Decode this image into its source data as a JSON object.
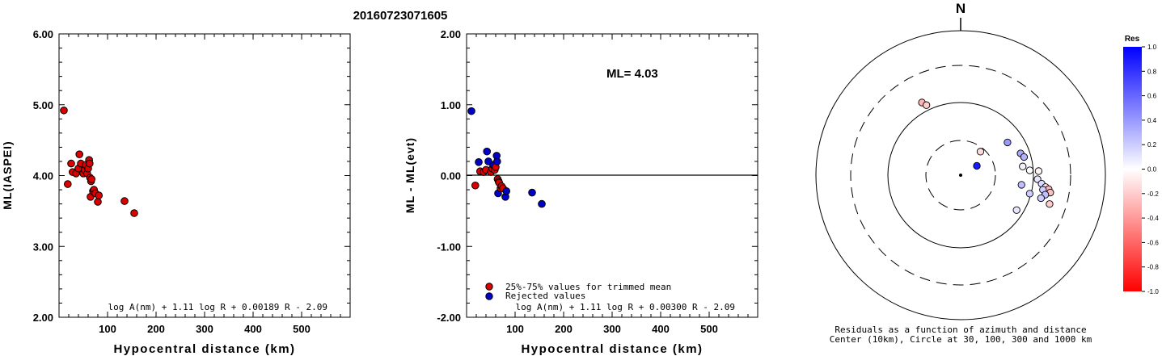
{
  "title": "20160723071605",
  "chart_data": [
    {
      "type": "scatter",
      "ylabel": "ML(IASPEI)",
      "xlabel": "Hypocentral distance (km)",
      "xlim": [
        0,
        600
      ],
      "ylim": [
        2.0,
        6.0
      ],
      "xticks": [
        "100",
        "200",
        "300",
        "400",
        "500"
      ],
      "yticks": [
        "2.00",
        "3.00",
        "4.00",
        "5.00",
        "6.00"
      ],
      "formula": "log A(nm) + 1.11 log R + 0.00189 R - 2.09",
      "color": "#dd0000",
      "points": [
        [
          10,
          4.92
        ],
        [
          18,
          3.88
        ],
        [
          25,
          4.17
        ],
        [
          28,
          4.05
        ],
        [
          35,
          4.03
        ],
        [
          40,
          4.1
        ],
        [
          42,
          4.3
        ],
        [
          45,
          4.17
        ],
        [
          50,
          4.03
        ],
        [
          53,
          4.08
        ],
        [
          55,
          4.15
        ],
        [
          58,
          4.03
        ],
        [
          60,
          4.1
        ],
        [
          62,
          4.22
        ],
        [
          63,
          4.17
        ],
        [
          64,
          3.97
        ],
        [
          65,
          3.7
        ],
        [
          66,
          3.92
        ],
        [
          67,
          3.95
        ],
        [
          70,
          3.78
        ],
        [
          72,
          3.8
        ],
        [
          75,
          3.75
        ],
        [
          80,
          3.63
        ],
        [
          82,
          3.72
        ],
        [
          135,
          3.64
        ],
        [
          155,
          3.47
        ]
      ]
    },
    {
      "type": "scatter",
      "ylabel": "ML - ML(evt)",
      "xlabel": "Hypocentral distance (km)",
      "xlim": [
        0,
        600
      ],
      "ylim": [
        -2.0,
        2.0
      ],
      "xticks": [
        "100",
        "200",
        "300",
        "400",
        "500"
      ],
      "yticks": [
        "-2.00",
        "-1.00",
        "0.00",
        "1.00",
        "2.00"
      ],
      "annotation": "ML= 4.03",
      "formula": "log A(nm) + 1.11 log R + 0.00300 R - 2.09",
      "legend": [
        {
          "label": "25%-75% values for trimmed mean",
          "color": "#dd0000"
        },
        {
          "label": "Rejected values",
          "color": "#0000cc"
        }
      ],
      "points": [
        [
          10,
          0.91,
          "r"
        ],
        [
          18,
          -0.14,
          "t"
        ],
        [
          25,
          0.19,
          "r"
        ],
        [
          28,
          0.06,
          "t"
        ],
        [
          35,
          0.05,
          "t"
        ],
        [
          40,
          0.08,
          "t"
        ],
        [
          42,
          0.34,
          "r"
        ],
        [
          45,
          0.2,
          "r"
        ],
        [
          50,
          0.05,
          "t"
        ],
        [
          53,
          0.1,
          "t"
        ],
        [
          55,
          0.15,
          "r"
        ],
        [
          58,
          0.08,
          "t"
        ],
        [
          60,
          0.12,
          "t"
        ],
        [
          62,
          0.28,
          "r"
        ],
        [
          63,
          0.2,
          "r"
        ],
        [
          64,
          -0.05,
          "t"
        ],
        [
          65,
          -0.25,
          "r"
        ],
        [
          66,
          -0.08,
          "t"
        ],
        [
          67,
          -0.1,
          "t"
        ],
        [
          70,
          -0.18,
          "t"
        ],
        [
          72,
          -0.15,
          "t"
        ],
        [
          75,
          -0.18,
          "t"
        ],
        [
          80,
          -0.3,
          "r"
        ],
        [
          82,
          -0.22,
          "r"
        ],
        [
          135,
          -0.24,
          "r"
        ],
        [
          155,
          -0.4,
          "r"
        ]
      ]
    },
    {
      "type": "polar",
      "north_label": "N",
      "caption_line1": "Residuals as a function of azimuth and distance",
      "caption_line2": "Center (10km), Circle at 30, 100, 300 and 1000 km",
      "colorbar_title": "Res",
      "colorbar_ticks": [
        "1.0",
        "0.8",
        "0.6",
        "0.4",
        "0.2",
        "0.0",
        "-0.2",
        "-0.4",
        "-0.6",
        "-0.8",
        "-1.0"
      ],
      "points": [
        {
          "az": -28,
          "r": 0.75,
          "res": -0.3
        },
        {
          "az": -26,
          "r": 0.71,
          "res": -0.2
        },
        {
          "az": 55,
          "r": 0.52,
          "res": 0.4
        },
        {
          "az": 70,
          "r": 0.58,
          "res": 0.35
        },
        {
          "az": 74,
          "r": 0.6,
          "res": 0.3
        },
        {
          "az": 40,
          "r": 0.28,
          "res": -0.15
        },
        {
          "az": 60,
          "r": 0.17,
          "res": 0.9
        },
        {
          "az": 82,
          "r": 0.57,
          "res": 0.05
        },
        {
          "az": 86,
          "r": 0.63,
          "res": 0.0
        },
        {
          "az": 87,
          "r": 0.71,
          "res": -0.05
        },
        {
          "az": 93,
          "r": 0.7,
          "res": 0.1
        },
        {
          "az": 96,
          "r": 0.74,
          "res": 0.15
        },
        {
          "az": 98,
          "r": 0.78,
          "res": -0.1
        },
        {
          "az": 99,
          "r": 0.81,
          "res": -0.3
        },
        {
          "az": 100,
          "r": 0.76,
          "res": 0.2
        },
        {
          "az": 101,
          "r": 0.83,
          "res": -0.25
        },
        {
          "az": 103,
          "r": 0.79,
          "res": 0.25
        },
        {
          "az": 105,
          "r": 0.65,
          "res": 0.2
        },
        {
          "az": 106,
          "r": 0.76,
          "res": 0.2
        },
        {
          "az": 108,
          "r": 0.85,
          "res": -0.2
        },
        {
          "az": 99,
          "r": 0.56,
          "res": 0.25
        },
        {
          "az": 122,
          "r": 0.6,
          "res": 0.1
        }
      ]
    }
  ]
}
